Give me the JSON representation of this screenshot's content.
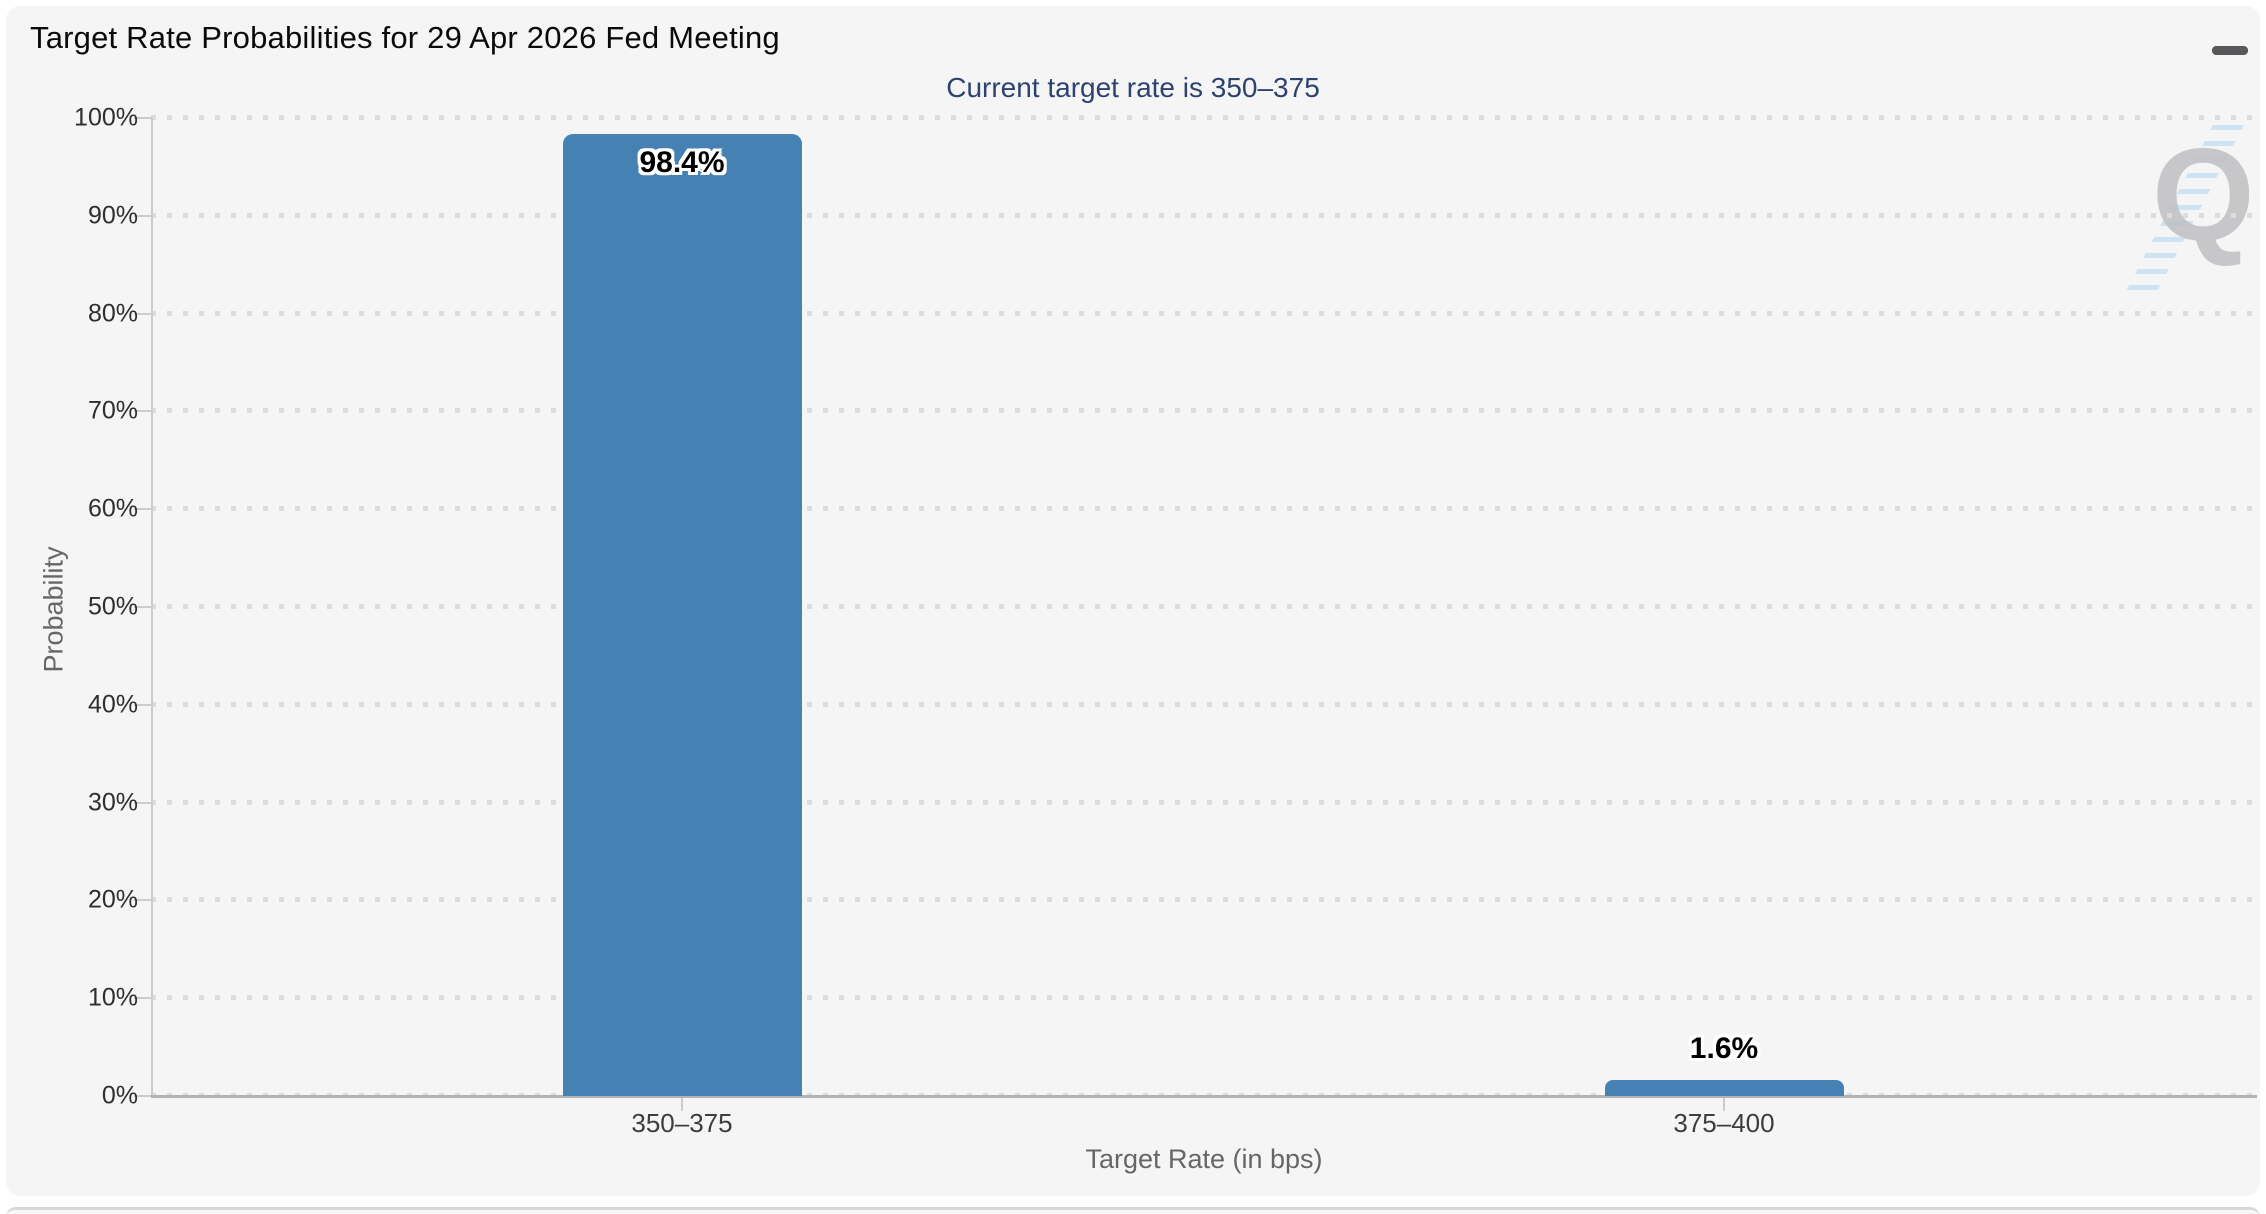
{
  "icons": {
    "menu": "hamburger-icon",
    "watermark": "q-logo-watermark"
  },
  "chart_data": {
    "type": "bar",
    "title": "Target Rate Probabilities for 29 Apr 2026 Fed Meeting",
    "subtitle": "Current target rate is 350–375",
    "categories": [
      "350–375",
      "375–400"
    ],
    "values": [
      98.4,
      1.6
    ],
    "value_labels": [
      "98.4%",
      "1.6%"
    ],
    "xlabel": "Target Rate (in bps)",
    "ylabel": "Probability",
    "ylim": [
      0,
      100
    ],
    "ytick_labels": [
      "100%",
      "90%",
      "80%",
      "70%",
      "60%",
      "50%",
      "40%",
      "30%",
      "20%",
      "10%",
      "0%"
    ],
    "grid": "dotted-horizontal",
    "legend_position": "none",
    "bar_color": "#4681b4",
    "subtitle_color": "#2e4270",
    "watermark_letter": "Q"
  }
}
